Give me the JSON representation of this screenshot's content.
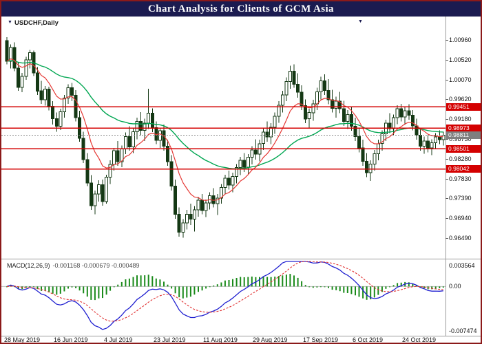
{
  "window": {
    "title": "Chart Analysis for Clients of GCM Asia"
  },
  "chart": {
    "symbol_label": "USDCHF,Daily",
    "current_price_label": "0.98811",
    "level_labels": [
      "0.99451",
      "0.98973",
      "0.98501",
      "0.98042"
    ]
  },
  "indicator_panel": {
    "label": "MACD(12,26,9)",
    "values_text": "-0.001168 -0.000679 -0.000489",
    "axis_labels": [
      "0.003564",
      "0.00",
      "-0.007474"
    ]
  },
  "colors": {
    "title_bg": "#1b1b50",
    "border": "#8b1a1a",
    "level_line": "#d40000",
    "bull": "#ffffff",
    "bear": "#143814",
    "candle_outline": "#143814",
    "ma_fast": "#e53935",
    "ma_slow": "#00a651",
    "macd_line": "#2020d0",
    "macd_signal": "#e03030",
    "macd_hist": "#1a8a1a",
    "current_price_tag": "#7f7f7f"
  },
  "chart_data": {
    "type": "candlestick",
    "title": "Chart Analysis for Clients of GCM Asia",
    "symbol": "USDCHF",
    "timeframe": "Daily",
    "y_axis_range": [
      0.9605,
      1.014
    ],
    "y_axis_ticks": [
      1.0096,
      1.0052,
      1.0007,
      0.9962,
      0.9918,
      0.9873,
      0.9828,
      0.9783,
      0.9739,
      0.9694,
      0.9649
    ],
    "x_axis_labels": [
      "28 May 2019",
      "16 Jun 2019",
      "4 Jul 2019",
      "23 Jul 2019",
      "11 Aug 2019",
      "29 Aug 2019",
      "17 Sep 2019",
      "6 Oct 2019",
      "24 Oct 2019"
    ],
    "x_axis_label_indices": [
      0,
      13,
      26,
      39,
      52,
      65,
      78,
      91,
      104
    ],
    "horizontal_levels": [
      0.99451,
      0.98973,
      0.98501,
      0.98042
    ],
    "last_price": 0.98811,
    "moving_averages": [
      {
        "name": "fast-ma",
        "period": 10,
        "color": "#e53935"
      },
      {
        "name": "slow-ma",
        "period": 40,
        "color": "#00a651"
      }
    ],
    "macd": {
      "params": [
        12,
        26,
        9
      ],
      "displayed_values": [
        -0.001168,
        -0.000679,
        -0.000489
      ],
      "y_axis": [
        0.003564,
        0,
        -0.007474
      ]
    },
    "candles": [
      [
        1.0095,
        1.0103,
        1.0041,
        1.0048
      ],
      [
        1.0048,
        1.0086,
        1.0032,
        1.0079
      ],
      [
        1.0079,
        1.0091,
        1.0026,
        1.0033
      ],
      [
        1.0033,
        1.0046,
        0.9981,
        0.9989
      ],
      [
        0.9989,
        1.0022,
        0.9978,
        1.0014
      ],
      [
        1.0014,
        1.0058,
        1.0006,
        1.0051
      ],
      [
        1.0051,
        1.0074,
        1.0032,
        1.0068
      ],
      [
        1.0068,
        1.0072,
        1.0015,
        1.0022
      ],
      [
        1.0022,
        1.0035,
        0.9972,
        0.9981
      ],
      [
        0.9981,
        1.0004,
        0.9952,
        0.9961
      ],
      [
        0.9961,
        0.9992,
        0.9948,
        0.9985
      ],
      [
        0.9985,
        0.9991,
        0.9937,
        0.9946
      ],
      [
        0.9946,
        0.9958,
        0.9905,
        0.9918
      ],
      [
        0.9918,
        0.9932,
        0.9889,
        0.9901
      ],
      [
        0.9901,
        0.9941,
        0.9893,
        0.9934
      ],
      [
        0.9934,
        0.9972,
        0.9921,
        0.9965
      ],
      [
        0.9965,
        0.9996,
        0.9952,
        0.9988
      ],
      [
        0.9988,
        0.9999,
        0.9958,
        0.9971
      ],
      [
        0.9971,
        0.9983,
        0.9912,
        0.9921
      ],
      [
        0.9921,
        0.9936,
        0.9866,
        0.9874
      ],
      [
        0.9874,
        0.9889,
        0.9818,
        0.9826
      ],
      [
        0.9826,
        0.9841,
        0.9766,
        0.9773
      ],
      [
        0.9773,
        0.9791,
        0.9712,
        0.9722
      ],
      [
        0.9722,
        0.9756,
        0.9702,
        0.9748
      ],
      [
        0.9748,
        0.9779,
        0.9731,
        0.9769
      ],
      [
        0.9769,
        0.9781,
        0.9722,
        0.9731
      ],
      [
        0.9731,
        0.9792,
        0.9726,
        0.9786
      ],
      [
        0.9786,
        0.9824,
        0.9771,
        0.9815
      ],
      [
        0.9815,
        0.9852,
        0.9801,
        0.9846
      ],
      [
        0.9846,
        0.9868,
        0.9812,
        0.9821
      ],
      [
        0.9821,
        0.9858,
        0.9809,
        0.9851
      ],
      [
        0.9851,
        0.9887,
        0.9838,
        0.9878
      ],
      [
        0.9878,
        0.9901,
        0.9846,
        0.9855
      ],
      [
        0.9855,
        0.9896,
        0.9841,
        0.9889
      ],
      [
        0.9889,
        0.9921,
        0.9872,
        0.9912
      ],
      [
        0.9912,
        0.9933,
        0.9881,
        0.9892
      ],
      [
        0.9892,
        0.9918,
        0.9868,
        0.9908
      ],
      [
        0.9908,
        0.9986,
        0.9895,
        0.9931
      ],
      [
        0.9931,
        0.9942,
        0.9888,
        0.9898
      ],
      [
        0.9898,
        0.9912,
        0.9861,
        0.9869
      ],
      [
        0.9869,
        0.9898,
        0.9852,
        0.9891
      ],
      [
        0.9891,
        0.9905,
        0.9846,
        0.9856
      ],
      [
        0.9856,
        0.9871,
        0.9812,
        0.9821
      ],
      [
        0.9821,
        0.9836,
        0.9756,
        0.9766
      ],
      [
        0.9766,
        0.9781,
        0.9692,
        0.9702
      ],
      [
        0.9702,
        0.9718,
        0.9652,
        0.9662
      ],
      [
        0.9662,
        0.9691,
        0.9649,
        0.9683
      ],
      [
        0.9683,
        0.9712,
        0.9668,
        0.9702
      ],
      [
        0.9702,
        0.9726,
        0.9678,
        0.9691
      ],
      [
        0.9691,
        0.9721,
        0.9663,
        0.9712
      ],
      [
        0.9712,
        0.9742,
        0.9697,
        0.9734
      ],
      [
        0.9734,
        0.9748,
        0.9702,
        0.9711
      ],
      [
        0.9711,
        0.9736,
        0.9696,
        0.9728
      ],
      [
        0.9728,
        0.9752,
        0.9713,
        0.9744
      ],
      [
        0.9744,
        0.9761,
        0.9718,
        0.9726
      ],
      [
        0.9726,
        0.9748,
        0.9701,
        0.9739
      ],
      [
        0.9739,
        0.9771,
        0.9726,
        0.9763
      ],
      [
        0.9763,
        0.9792,
        0.9748,
        0.9784
      ],
      [
        0.9784,
        0.9801,
        0.9758,
        0.9768
      ],
      [
        0.9768,
        0.9796,
        0.9752,
        0.9788
      ],
      [
        0.9788,
        0.9816,
        0.9772,
        0.9808
      ],
      [
        0.9808,
        0.9832,
        0.9791,
        0.9824
      ],
      [
        0.9824,
        0.9841,
        0.9798,
        0.9809
      ],
      [
        0.9809,
        0.9838,
        0.9792,
        0.9831
      ],
      [
        0.9831,
        0.9856,
        0.9815,
        0.9848
      ],
      [
        0.9848,
        0.9872,
        0.9826,
        0.9838
      ],
      [
        0.9838,
        0.9871,
        0.9822,
        0.9862
      ],
      [
        0.9862,
        0.9896,
        0.9848,
        0.9888
      ],
      [
        0.9888,
        0.9912,
        0.9866,
        0.9877
      ],
      [
        0.9877,
        0.9908,
        0.9861,
        0.9899
      ],
      [
        0.9899,
        0.9932,
        0.9884,
        0.9924
      ],
      [
        0.9924,
        0.9958,
        0.9909,
        0.9949
      ],
      [
        0.9949,
        0.9981,
        0.9932,
        0.9972
      ],
      [
        0.9972,
        1.0012,
        0.9958,
        1.0002
      ],
      [
        1.0002,
        1.0038,
        0.9986,
        1.0026
      ],
      [
        1.0026,
        1.0041,
        0.9988,
        0.9996
      ],
      [
        0.9996,
        1.0021,
        0.9966,
        0.9978
      ],
      [
        0.9978,
        0.9994,
        0.9938,
        0.9948
      ],
      [
        0.9948,
        0.9962,
        0.9908,
        0.9918
      ],
      [
        0.9918,
        0.9941,
        0.9896,
        0.9932
      ],
      [
        0.9932,
        0.9961,
        0.9914,
        0.9952
      ],
      [
        0.9952,
        0.9988,
        0.9938,
        0.9979
      ],
      [
        0.9979,
        1.0013,
        0.9962,
        1.0004
      ],
      [
        1.0004,
        1.0019,
        0.9972,
        0.9982
      ],
      [
        0.9982,
        1.0008,
        0.9951,
        0.9961
      ],
      [
        0.9961,
        0.9984,
        0.9932,
        0.9942
      ],
      [
        0.9942,
        0.9968,
        0.9921,
        0.9958
      ],
      [
        0.9958,
        0.9979,
        0.9931,
        0.9941
      ],
      [
        0.9941,
        0.9959,
        0.9902,
        0.9912
      ],
      [
        0.9912,
        0.9938,
        0.9895,
        0.9928
      ],
      [
        0.9928,
        0.9946,
        0.9891,
        0.9901
      ],
      [
        0.9901,
        0.9921,
        0.9868,
        0.9878
      ],
      [
        0.9878,
        0.9898,
        0.9842,
        0.9852
      ],
      [
        0.9852,
        0.9871,
        0.9812,
        0.9822
      ],
      [
        0.9822,
        0.9841,
        0.9786,
        0.9796
      ],
      [
        0.9796,
        0.9824,
        0.9778,
        0.9816
      ],
      [
        0.9816,
        0.9848,
        0.9801,
        0.9839
      ],
      [
        0.9839,
        0.9871,
        0.9824,
        0.9862
      ],
      [
        0.9862,
        0.9892,
        0.9846,
        0.9884
      ],
      [
        0.9884,
        0.9916,
        0.9868,
        0.9908
      ],
      [
        0.9908,
        0.9931,
        0.9886,
        0.9896
      ],
      [
        0.9896,
        0.9928,
        0.9881,
        0.9921
      ],
      [
        0.9921,
        0.9949,
        0.9906,
        0.9941
      ],
      [
        0.9941,
        0.9952,
        0.9912,
        0.9922
      ],
      [
        0.9922,
        0.9946,
        0.9904,
        0.9936
      ],
      [
        0.9936,
        0.9951,
        0.9916,
        0.9926
      ],
      [
        0.9926,
        0.9938,
        0.9892,
        0.9902
      ],
      [
        0.9902,
        0.9918,
        0.9871,
        0.9881
      ],
      [
        0.9881,
        0.9896,
        0.9846,
        0.9856
      ],
      [
        0.9856,
        0.9878,
        0.9839,
        0.9868
      ],
      [
        0.9868,
        0.9881,
        0.9842,
        0.9852
      ],
      [
        0.9852,
        0.9872,
        0.9836,
        0.9864
      ],
      [
        0.9864,
        0.9886,
        0.9851,
        0.9877
      ],
      [
        0.9877,
        0.9892,
        0.9861,
        0.9871
      ],
      [
        0.9871,
        0.9889,
        0.9858,
        0.98811
      ]
    ]
  }
}
